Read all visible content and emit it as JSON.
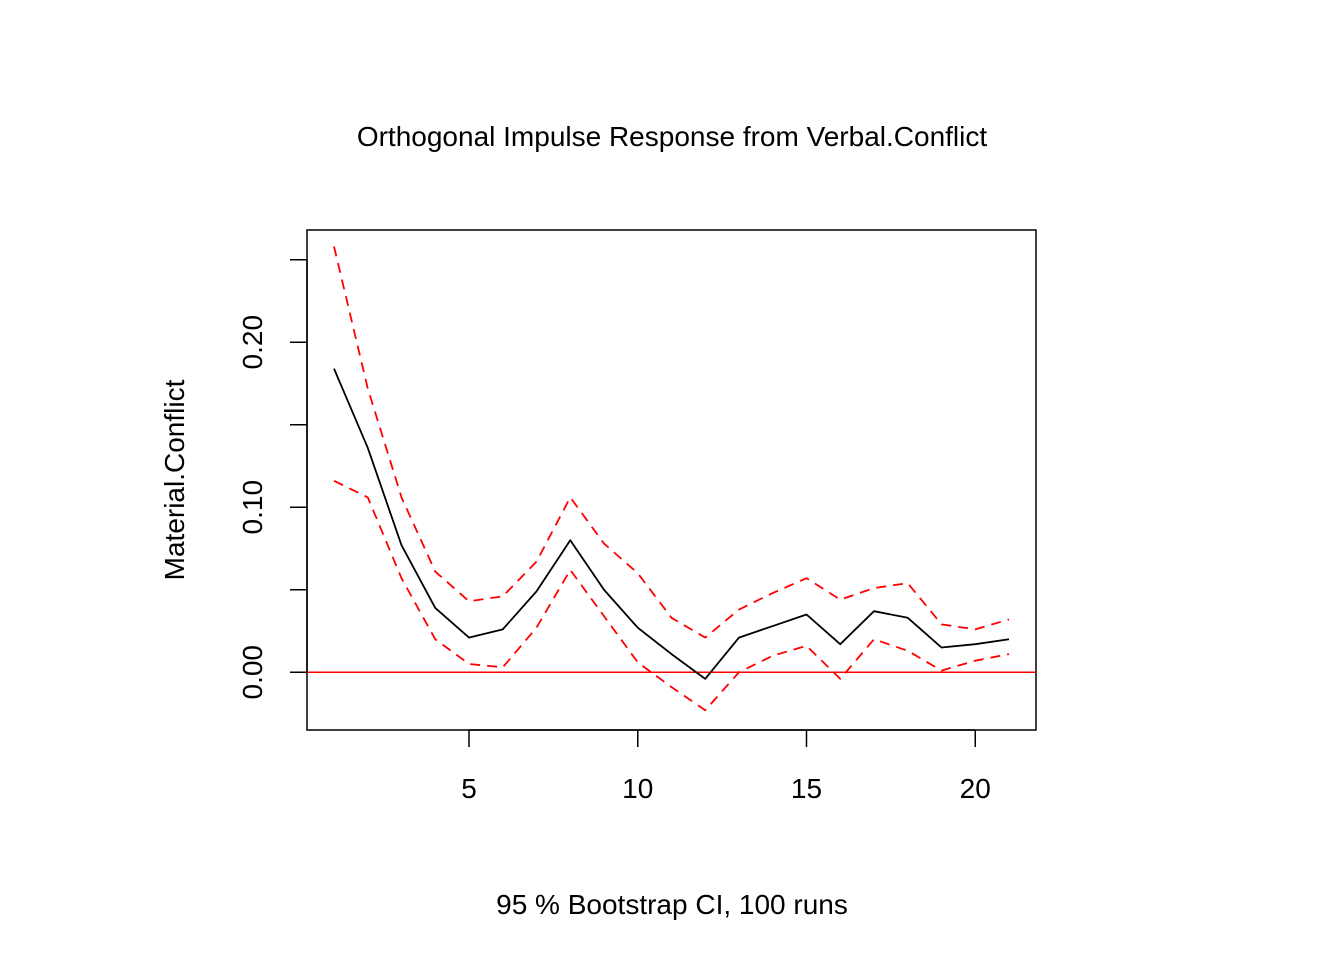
{
  "chart_data": {
    "type": "line",
    "title": "Orthogonal Impulse Response from Verbal.Conflict",
    "xlabel": "95 % Bootstrap CI,  100 runs",
    "ylabel": "Material.Conflict",
    "xlim": [
      0.2,
      21.8
    ],
    "ylim": [
      -0.035,
      0.268
    ],
    "x_ticks": [
      5,
      10,
      15,
      20
    ],
    "x_tick_labels": [
      "5",
      "10",
      "15",
      "20"
    ],
    "y_ticks": [
      0.0,
      0.05,
      0.1,
      0.15,
      0.2,
      0.25
    ],
    "y_tick_labels": [
      "0.00",
      "",
      "0.10",
      "",
      "0.20",
      ""
    ],
    "grid": false,
    "reference_line": {
      "y": 0,
      "color": "#ff0000"
    },
    "x": [
      1,
      2,
      3,
      4,
      5,
      6,
      7,
      8,
      9,
      10,
      11,
      12,
      13,
      14,
      15,
      16,
      17,
      18,
      19,
      20,
      21
    ],
    "series": [
      {
        "role": "estimate",
        "color": "#000000",
        "dashed": false,
        "values": [
          0.184,
          0.136,
          0.077,
          0.039,
          0.021,
          0.026,
          0.049,
          0.08,
          0.05,
          0.027,
          0.011,
          -0.004,
          0.021,
          0.028,
          0.035,
          0.017,
          0.037,
          0.033,
          0.015,
          0.017,
          0.02
        ]
      },
      {
        "role": "upper",
        "color": "#ff0000",
        "dashed": true,
        "values": [
          0.258,
          0.172,
          0.106,
          0.061,
          0.043,
          0.046,
          0.067,
          0.106,
          0.078,
          0.06,
          0.033,
          0.021,
          0.038,
          0.048,
          0.057,
          0.044,
          0.051,
          0.054,
          0.029,
          0.026,
          0.032
        ]
      },
      {
        "role": "lower",
        "color": "#ff0000",
        "dashed": true,
        "values": [
          0.116,
          0.106,
          0.057,
          0.02,
          0.005,
          0.003,
          0.027,
          0.062,
          0.034,
          0.006,
          -0.009,
          -0.023,
          0.0,
          0.01,
          0.016,
          -0.004,
          0.02,
          0.013,
          0.001,
          0.007,
          0.011
        ]
      }
    ]
  }
}
